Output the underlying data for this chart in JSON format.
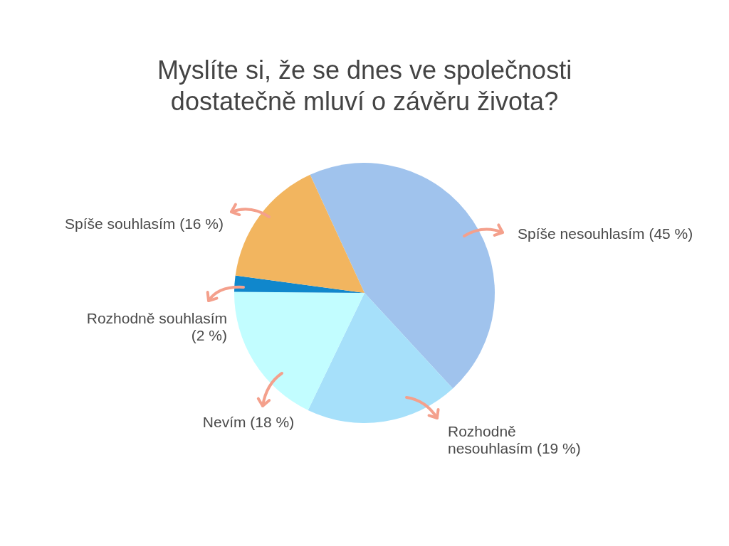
{
  "chart_data": {
    "type": "pie",
    "title": "Myslíte si, že se dnes ve společnosti dostatečně mluví o závěru života?",
    "categories": [
      "Spíše nesouhlasím",
      "Rozhodně nesouhlasím",
      "Nevím",
      "Rozhodně souhlasím",
      "Spíše souhlasím"
    ],
    "values": [
      45,
      19,
      18,
      2,
      16
    ],
    "colors": [
      "#a0c3ed",
      "#a6e0fa",
      "#c2fdff",
      "#1087cc",
      "#f2b55f"
    ],
    "value_labels": [
      "(45 %)",
      "(19 %)",
      "(18 %)",
      "(2 %)",
      "(16 %)"
    ],
    "legend": false
  }
}
